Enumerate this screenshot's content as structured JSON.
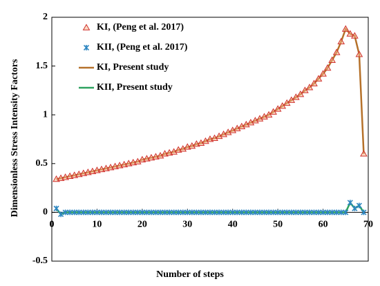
{
  "chart_data": {
    "type": "line",
    "xlabel": "Number of steps",
    "ylabel": "Dimensionless Stress Intensity Factors",
    "x": [
      1,
      2,
      3,
      4,
      5,
      6,
      7,
      8,
      9,
      10,
      11,
      12,
      13,
      14,
      15,
      16,
      17,
      18,
      19,
      20,
      21,
      22,
      23,
      24,
      25,
      26,
      27,
      28,
      29,
      30,
      31,
      32,
      33,
      34,
      35,
      36,
      37,
      38,
      39,
      40,
      41,
      42,
      43,
      44,
      45,
      46,
      47,
      48,
      49,
      50,
      51,
      52,
      53,
      54,
      55,
      56,
      57,
      58,
      59,
      60,
      61,
      62,
      63,
      64,
      65,
      66,
      67,
      68,
      69
    ],
    "series": [
      {
        "name": "KI, (Peng et al. 2017)",
        "color": "#d0312d",
        "mark": "triangle",
        "values": [
          0.34,
          0.35,
          0.36,
          0.37,
          0.38,
          0.39,
          0.4,
          0.41,
          0.42,
          0.43,
          0.44,
          0.45,
          0.46,
          0.47,
          0.48,
          0.49,
          0.5,
          0.51,
          0.52,
          0.54,
          0.55,
          0.56,
          0.57,
          0.58,
          0.6,
          0.61,
          0.62,
          0.64,
          0.65,
          0.67,
          0.68,
          0.7,
          0.71,
          0.73,
          0.75,
          0.76,
          0.78,
          0.8,
          0.82,
          0.84,
          0.86,
          0.88,
          0.9,
          0.92,
          0.94,
          0.96,
          0.98,
          1.0,
          1.03,
          1.06,
          1.09,
          1.12,
          1.15,
          1.18,
          1.21,
          1.25,
          1.28,
          1.32,
          1.37,
          1.42,
          1.48,
          1.56,
          1.64,
          1.75,
          1.88,
          1.83,
          1.81,
          1.62,
          0.6
        ]
      },
      {
        "name": "KII, (Peng et al. 2017)",
        "color": "#2e86c1",
        "mark": "cross",
        "values": [
          0.04,
          -0.02,
          0,
          0,
          0,
          0,
          0,
          0,
          0,
          0,
          0,
          0,
          0,
          0,
          0,
          0,
          0,
          0,
          0,
          0,
          0,
          0,
          0,
          0,
          0,
          0,
          0,
          0,
          0,
          0,
          0,
          0,
          0,
          0,
          0,
          0,
          0,
          0,
          0,
          0,
          0,
          0,
          0,
          0,
          0,
          0,
          0,
          0,
          0,
          0,
          0,
          0,
          0,
          0,
          0,
          0,
          0,
          0,
          0,
          0,
          0,
          0,
          0,
          0,
          0,
          0.1,
          0.04,
          0.07,
          0
        ]
      },
      {
        "name": "KI, Present study",
        "color": "#b5712a",
        "mark": "line",
        "values": [
          0.34,
          0.35,
          0.36,
          0.37,
          0.38,
          0.39,
          0.4,
          0.41,
          0.42,
          0.43,
          0.44,
          0.45,
          0.46,
          0.47,
          0.48,
          0.49,
          0.5,
          0.51,
          0.52,
          0.54,
          0.55,
          0.56,
          0.57,
          0.58,
          0.6,
          0.61,
          0.62,
          0.64,
          0.65,
          0.67,
          0.68,
          0.7,
          0.71,
          0.73,
          0.75,
          0.76,
          0.78,
          0.8,
          0.82,
          0.84,
          0.86,
          0.88,
          0.9,
          0.92,
          0.94,
          0.96,
          0.98,
          1.0,
          1.03,
          1.06,
          1.09,
          1.12,
          1.15,
          1.18,
          1.21,
          1.25,
          1.28,
          1.32,
          1.37,
          1.42,
          1.48,
          1.56,
          1.64,
          1.75,
          1.88,
          1.83,
          1.81,
          1.62,
          0.6
        ]
      },
      {
        "name": "KII, Present study",
        "color": "#2ca25f",
        "mark": "line",
        "values": [
          0.04,
          -0.02,
          0,
          0,
          0,
          0,
          0,
          0,
          0,
          0,
          0,
          0,
          0,
          0,
          0,
          0,
          0,
          0,
          0,
          0,
          0,
          0,
          0,
          0,
          0,
          0,
          0,
          0,
          0,
          0,
          0,
          0,
          0,
          0,
          0,
          0,
          0,
          0,
          0,
          0,
          0,
          0,
          0,
          0,
          0,
          0,
          0,
          0,
          0,
          0,
          0,
          0,
          0,
          0,
          0,
          0,
          0,
          0,
          0,
          0,
          0,
          0,
          0,
          0,
          0,
          0.1,
          0.04,
          0.07,
          0
        ]
      }
    ],
    "xlim": [
      0,
      70
    ],
    "xticks": [
      0,
      10,
      20,
      30,
      40,
      50,
      60,
      70
    ],
    "ylim": [
      -0.5,
      2
    ],
    "yticks": [
      -0.5,
      0,
      0.5,
      1,
      1.5,
      2
    ]
  }
}
